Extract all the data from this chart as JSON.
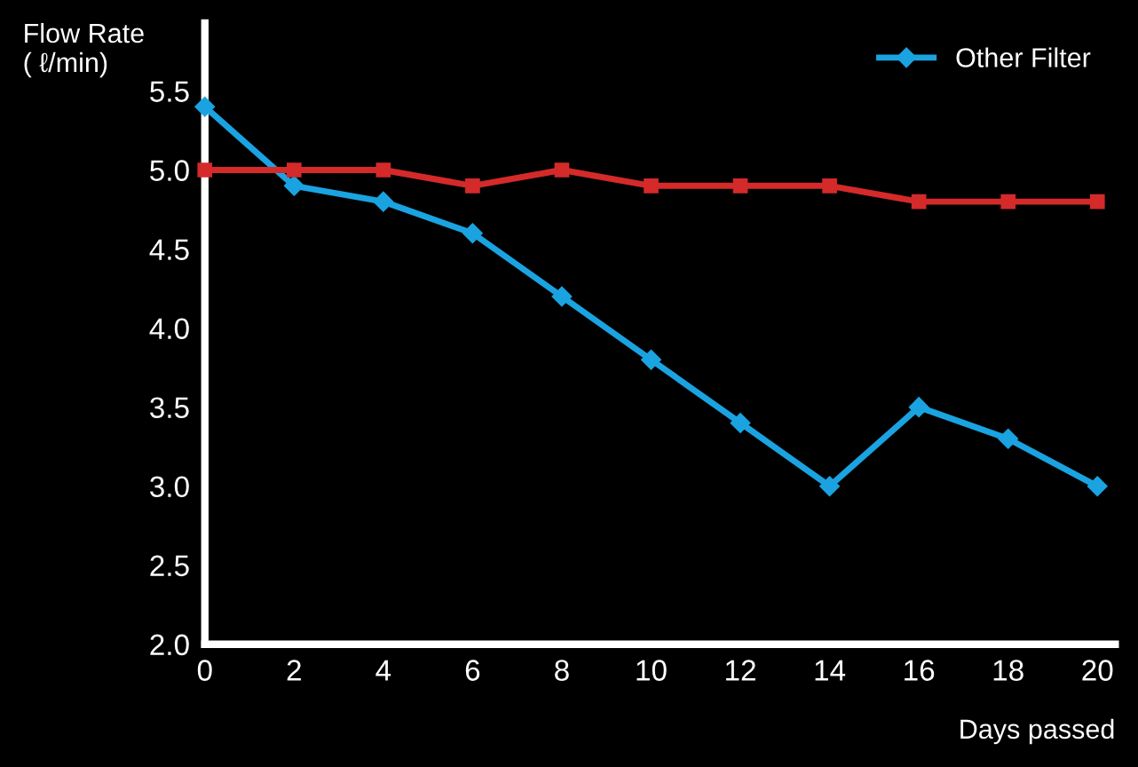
{
  "chart_data": {
    "type": "line",
    "ylabel": "Flow Rate\n( ℓ/min)",
    "xlabel": "Days passed",
    "x": [
      0,
      2,
      4,
      6,
      8,
      10,
      12,
      14,
      16,
      18,
      20
    ],
    "series": [
      {
        "name": "Other Filter",
        "color": "#1aa3e0",
        "marker": "diamond",
        "values": [
          5.4,
          4.9,
          4.8,
          4.6,
          4.2,
          3.8,
          3.4,
          3.0,
          3.5,
          3.3,
          3.0
        ]
      },
      {
        "color": "#d42a2a",
        "marker": "square",
        "values": [
          5.0,
          5.0,
          5.0,
          4.9,
          5.0,
          4.9,
          4.9,
          4.9,
          4.8,
          4.8,
          4.8
        ]
      }
    ],
    "xlim": [
      0,
      20.4
    ],
    "xticks": [
      0,
      2,
      4,
      6,
      8,
      10,
      12,
      14,
      16,
      18,
      20
    ],
    "ylim": [
      2.0,
      5.93
    ],
    "yticks": [
      {
        "value": 2.0,
        "label": "2.0"
      },
      {
        "value": 2.5,
        "label": "2.5"
      },
      {
        "value": 3.0,
        "label": "3.0"
      },
      {
        "value": 3.5,
        "label": "3.5"
      },
      {
        "value": 4.0,
        "label": "4.0"
      },
      {
        "value": 4.5,
        "label": "4.5"
      },
      {
        "value": 5.0,
        "label": "5.0"
      },
      {
        "value": 5.5,
        "label": "5.5"
      }
    ],
    "grid": false,
    "legend": "top right",
    "line_style": "solid"
  }
}
